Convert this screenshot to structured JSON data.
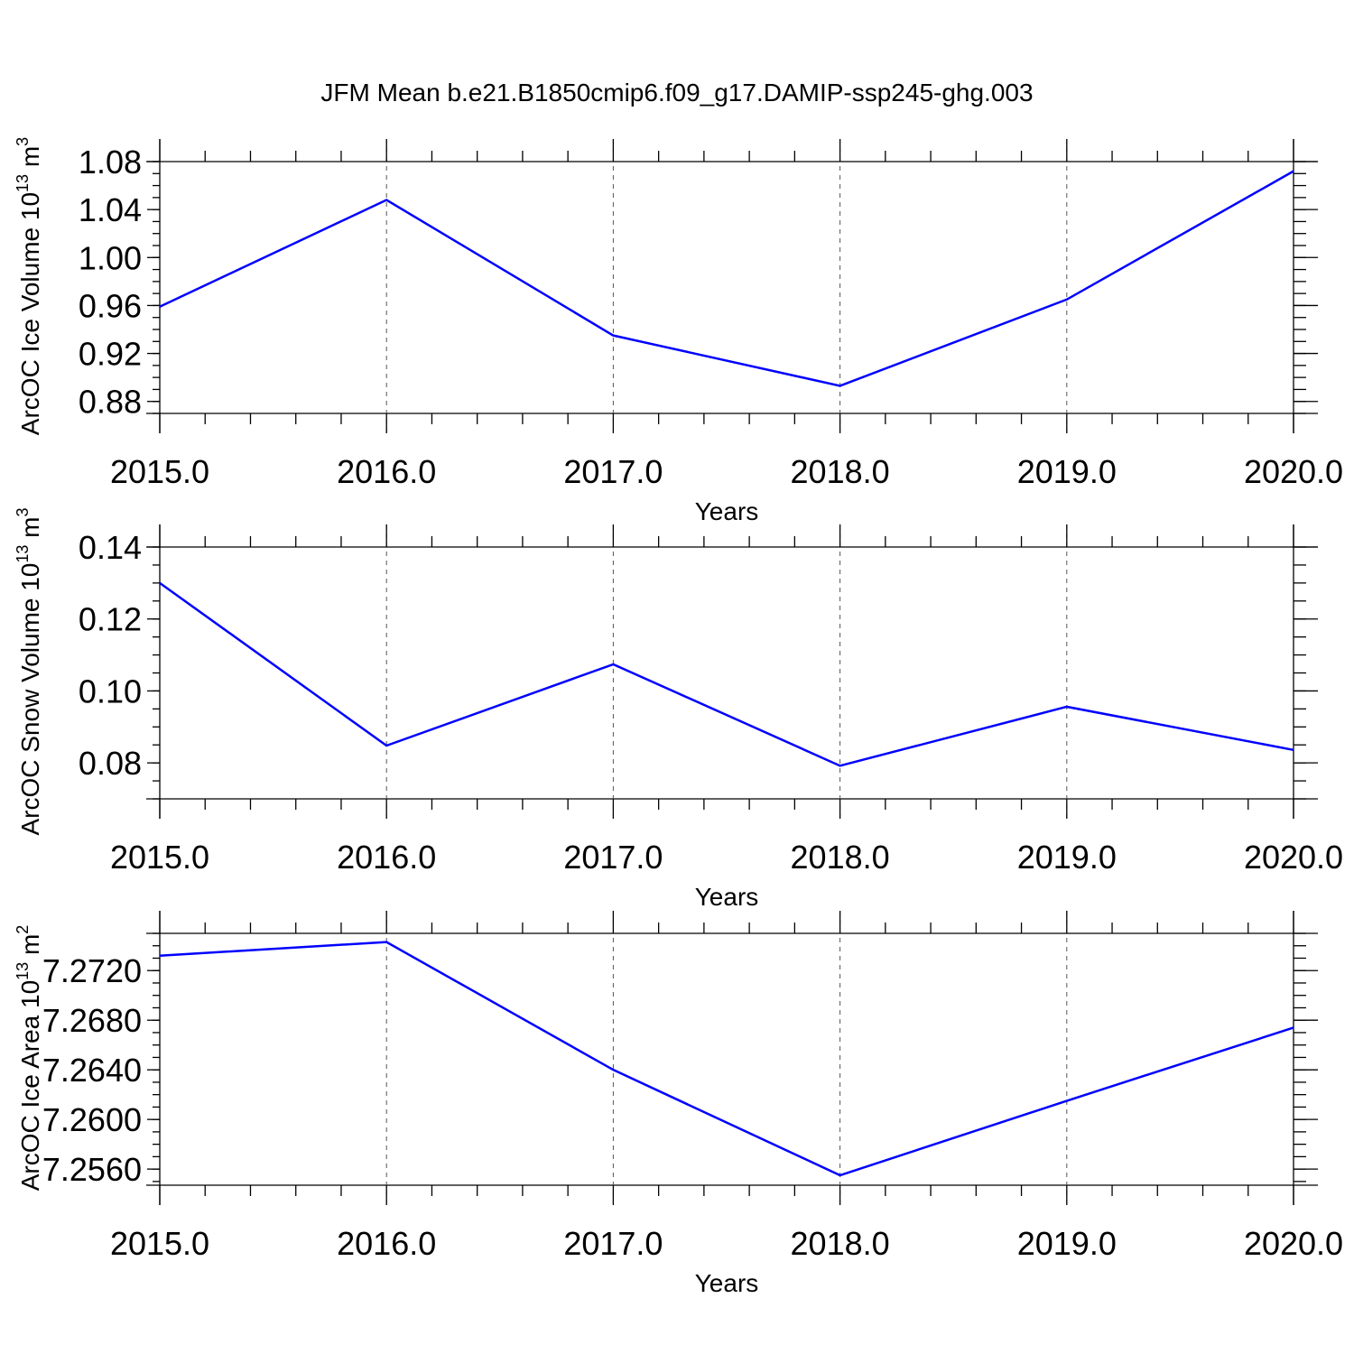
{
  "title": "JFM Mean b.e21.B1850cmip6.f09_g17.DAMIP-ssp245-ghg.003",
  "chart_data": [
    {
      "type": "line",
      "ylabel": "ArcOC Ice Volume 10",
      "ylabel_sup": "13",
      "ylabel_unit": " m",
      "ylabel_unit_sup": "3",
      "xlabel": "Years",
      "x": [
        2015,
        2016,
        2017,
        2018,
        2019,
        2020
      ],
      "y": [
        0.959,
        1.048,
        0.935,
        0.893,
        0.965,
        1.072
      ],
      "xlim": [
        2015,
        2020
      ],
      "ylim": [
        0.87,
        1.08
      ],
      "xticks": [
        "2015.0",
        "2016.0",
        "2017.0",
        "2018.0",
        "2019.0",
        "2020.0"
      ],
      "yticks": [
        "0.88",
        "0.92",
        "0.96",
        "1.00",
        "1.04",
        "1.08"
      ],
      "ytick_values": [
        0.88,
        0.92,
        0.96,
        1.0,
        1.04,
        1.08
      ],
      "color": "#0000ff",
      "grid": "vertical-dashed"
    },
    {
      "type": "line",
      "ylabel": "ArcOC Snow Volume 10",
      "ylabel_sup": "13",
      "ylabel_unit": " m",
      "ylabel_unit_sup": "3",
      "xlabel": "Years",
      "x": [
        2015,
        2016,
        2017,
        2018,
        2019,
        2020
      ],
      "y": [
        0.13,
        0.0848,
        0.1074,
        0.0792,
        0.0956,
        0.0836
      ],
      "xlim": [
        2015,
        2020
      ],
      "ylim": [
        0.07,
        0.14
      ],
      "xticks": [
        "2015.0",
        "2016.0",
        "2017.0",
        "2018.0",
        "2019.0",
        "2020.0"
      ],
      "yticks": [
        "0.08",
        "0.10",
        "0.12",
        "0.14"
      ],
      "ytick_values": [
        0.08,
        0.1,
        0.12,
        0.14
      ],
      "color": "#0000ff",
      "grid": "vertical-dashed"
    },
    {
      "type": "line",
      "ylabel": "ArcOC Ice Area 10",
      "ylabel_sup": "13",
      "ylabel_unit": " m",
      "ylabel_unit_sup": "2",
      "xlabel": "Years",
      "x": [
        2015,
        2016,
        2017,
        2018,
        2019,
        2020
      ],
      "y": [
        7.2732,
        7.2743,
        7.264,
        7.2555,
        7.2615,
        7.2674
      ],
      "xlim": [
        2015,
        2020
      ],
      "ylim": [
        7.2547,
        7.275
      ],
      "xticks": [
        "2015.0",
        "2016.0",
        "2017.0",
        "2018.0",
        "2019.0",
        "2020.0"
      ],
      "yticks": [
        "7.2560",
        "7.2600",
        "7.2640",
        "7.2680",
        "7.2720"
      ],
      "ytick_values": [
        7.256,
        7.26,
        7.264,
        7.268,
        7.272
      ],
      "color": "#0000ff",
      "grid": "vertical-dashed"
    }
  ]
}
